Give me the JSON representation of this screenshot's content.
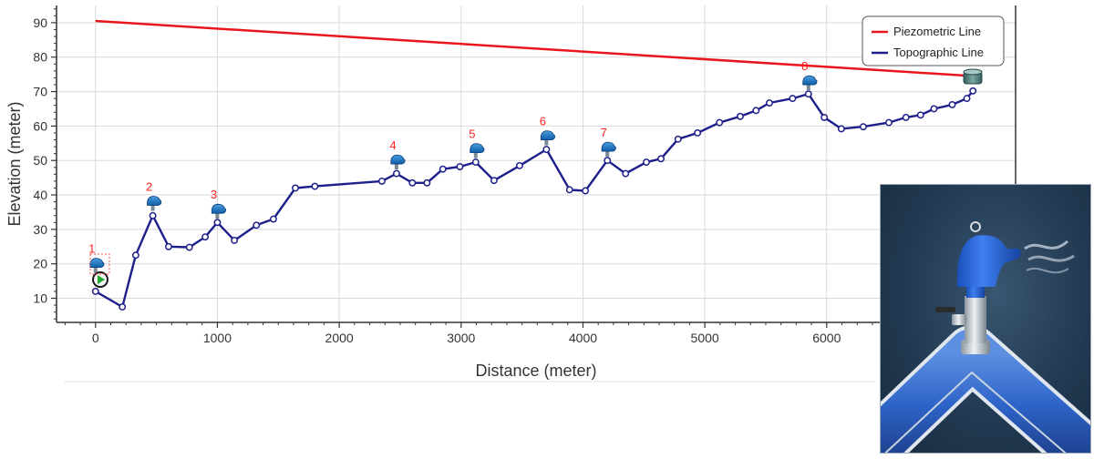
{
  "chart_data": {
    "type": "line",
    "xlabel": "Distance (meter)",
    "ylabel": "Elevation (meter)",
    "xlim": [
      -320,
      7550
    ],
    "ylim": [
      3,
      95
    ],
    "xticks": [
      0,
      1000,
      2000,
      3000,
      4000,
      5000,
      6000
    ],
    "yticks": [
      10,
      20,
      30,
      40,
      50,
      60,
      70,
      80,
      90
    ],
    "grid": true,
    "legend_position": "top-right",
    "series": [
      {
        "name": "Piezometric Line",
        "color": "#e8161c",
        "x": [
          0,
          7200
        ],
        "y": [
          90.5,
          74.5
        ]
      },
      {
        "name": "Topographic Line",
        "color": "#1d1f8a",
        "x": [
          0,
          220,
          330,
          470,
          600,
          770,
          900,
          1000,
          1140,
          1320,
          1460,
          1640,
          1800,
          2350,
          2470,
          2600,
          2720,
          2850,
          2990,
          3120,
          3270,
          3480,
          3700,
          3890,
          4020,
          4200,
          4350,
          4520,
          4640,
          4780,
          4940,
          5120,
          5290,
          5420,
          5530,
          5720,
          5850,
          5980,
          6120,
          6300,
          6510,
          6650,
          6770,
          6880,
          7030,
          7150,
          7200
        ],
        "y": [
          12,
          7.5,
          22.5,
          34,
          25,
          24.8,
          27.8,
          32,
          26.8,
          31.2,
          33,
          42,
          42.5,
          44,
          46.2,
          43.5,
          43.5,
          47.5,
          48.2,
          49.5,
          44.2,
          48.5,
          53.2,
          41.5,
          41.2,
          50,
          46.2,
          49.5,
          50.5,
          56.2,
          58,
          61,
          62.8,
          64.5,
          66.7,
          68,
          69.3,
          62.5,
          59.2,
          59.8,
          61,
          62.5,
          63.2,
          65,
          66.2,
          68,
          70.2
        ]
      }
    ],
    "markers": [
      {
        "label": "1",
        "x": 0,
        "y": 19.5,
        "kind": "air-valve"
      },
      {
        "label": "2",
        "x": 470,
        "y": 37.5,
        "kind": "air-valve"
      },
      {
        "label": "3",
        "x": 1000,
        "y": 35.2,
        "kind": "air-valve"
      },
      {
        "label": "4",
        "x": 2470,
        "y": 49.5,
        "kind": "air-valve"
      },
      {
        "label": "5",
        "x": 3120,
        "y": 52.8,
        "kind": "air-valve"
      },
      {
        "label": "6",
        "x": 3700,
        "y": 56.5,
        "kind": "air-valve"
      },
      {
        "label": "7",
        "x": 4200,
        "y": 53.2,
        "kind": "air-valve"
      },
      {
        "label": "8",
        "x": 5850,
        "y": 72.5,
        "kind": "air-valve"
      }
    ]
  }
}
